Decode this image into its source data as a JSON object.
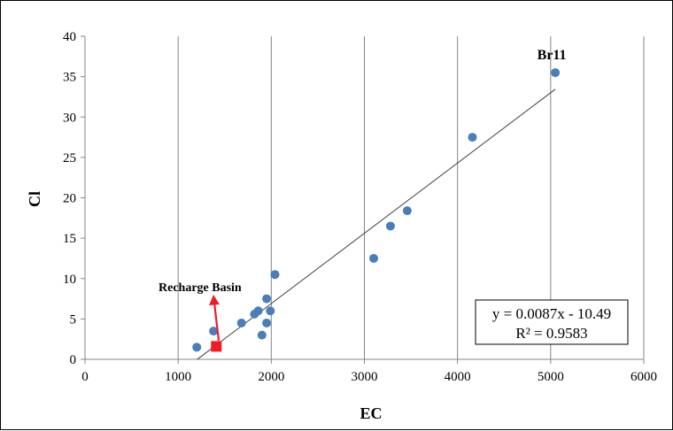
{
  "chart_data": {
    "type": "scatter",
    "title": "",
    "xlabel": "EC",
    "ylabel": "Cl",
    "xlim": [
      0,
      6000
    ],
    "ylim": [
      0,
      40
    ],
    "x_ticks": [
      "0",
      "1000",
      "2000",
      "3000",
      "4000",
      "5000",
      "6000"
    ],
    "y_ticks": [
      "0",
      "5",
      "10",
      "15",
      "20",
      "25",
      "30",
      "35",
      "40"
    ],
    "grid": "vertical",
    "series": [
      {
        "color": "#4a7ebb",
        "marker": "circle",
        "points": [
          {
            "x": 1200,
            "y": 1.5
          },
          {
            "x": 1380,
            "y": 3.5
          },
          {
            "x": 1680,
            "y": 4.5
          },
          {
            "x": 1820,
            "y": 5.6
          },
          {
            "x": 1860,
            "y": 6.0
          },
          {
            "x": 1900,
            "y": 3.0
          },
          {
            "x": 1950,
            "y": 4.5
          },
          {
            "x": 1950,
            "y": 7.5
          },
          {
            "x": 1990,
            "y": 6.0
          },
          {
            "x": 2040,
            "y": 10.5
          },
          {
            "x": 3100,
            "y": 12.5
          },
          {
            "x": 3280,
            "y": 16.5
          },
          {
            "x": 3460,
            "y": 18.4
          },
          {
            "x": 4160,
            "y": 27.5
          },
          {
            "x": 5050,
            "y": 35.5
          }
        ]
      },
      {
        "color": "#ee1c24",
        "marker": "square",
        "points": [
          {
            "x": 1410,
            "y": 1.6
          }
        ]
      }
    ],
    "trendline": {
      "slope": 0.0087,
      "intercept": -10.49,
      "x_range": [
        1205,
        5050
      ],
      "color": "#404040"
    },
    "annotations": {
      "br11": {
        "text": "Br11",
        "x": 5050,
        "y": 35.5
      },
      "recharge": {
        "text": "Recharge Basin",
        "arrow_color": "#ee1c24"
      }
    },
    "equation_box": {
      "line1": "y = 0.0087x - 10.49",
      "line2": "R² = 0.9583",
      "position": "bottom-right"
    }
  }
}
